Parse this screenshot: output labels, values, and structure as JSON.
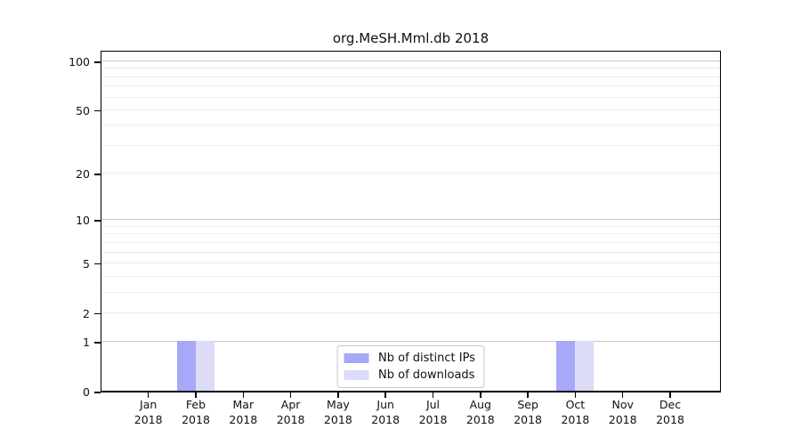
{
  "chart": {
    "title": "org.MeSH.Mml.db 2018",
    "year_label": "2018",
    "months": [
      "Jan",
      "Feb",
      "Mar",
      "Apr",
      "May",
      "Jun",
      "Jul",
      "Aug",
      "Sep",
      "Oct",
      "Nov",
      "Dec"
    ],
    "y_tick_labels": [
      "0",
      "1",
      "2",
      "5",
      "10",
      "20",
      "50",
      "100"
    ],
    "y_tick_values": [
      0,
      1,
      2,
      5,
      10,
      20,
      50,
      100
    ],
    "major_gridline_values": [
      1,
      10,
      100
    ],
    "minor_gridline_values": [
      2,
      3,
      4,
      5,
      6,
      7,
      8,
      9,
      20,
      30,
      40,
      50,
      60,
      70,
      80,
      90
    ],
    "legend": {
      "items": [
        {
          "label": "Nb of distinct IPs",
          "color": "#a8a8f8"
        },
        {
          "label": "Nb of downloads",
          "color": "#dcdcf8"
        }
      ]
    },
    "colors": {
      "bar_distinct_ips": "#a8a8f8",
      "bar_downloads": "#dcdcf8",
      "major_grid": "#c9c9c9",
      "minor_grid": "#ececec",
      "spine": "#000000",
      "background": "#ffffff"
    }
  },
  "chart_data": {
    "type": "bar",
    "title": "org.MeSH.Mml.db 2018",
    "categories": [
      "Jan 2018",
      "Feb 2018",
      "Mar 2018",
      "Apr 2018",
      "May 2018",
      "Jun 2018",
      "Jul 2018",
      "Aug 2018",
      "Sep 2018",
      "Oct 2018",
      "Nov 2018",
      "Dec 2018"
    ],
    "series": [
      {
        "name": "Nb of distinct IPs",
        "color": "#a8a8f8",
        "values": [
          0,
          1,
          0,
          0,
          0,
          0,
          0,
          0,
          0,
          1,
          0,
          0
        ]
      },
      {
        "name": "Nb of downloads",
        "color": "#dcdcf8",
        "values": [
          0,
          1,
          0,
          0,
          0,
          0,
          0,
          0,
          0,
          1,
          0,
          0
        ]
      }
    ],
    "xlabel": "",
    "ylabel": "",
    "y_scale": "log1p",
    "y_ticks": [
      0,
      1,
      2,
      5,
      10,
      20,
      50,
      100
    ],
    "ylim": [
      0,
      118
    ],
    "grid": "horizontal major (1,10,100) + minor (2-9, 20-90)",
    "legend_position": "lower center",
    "bar_layout": "grouped, 2 bars per category, bars only where value > 0"
  }
}
